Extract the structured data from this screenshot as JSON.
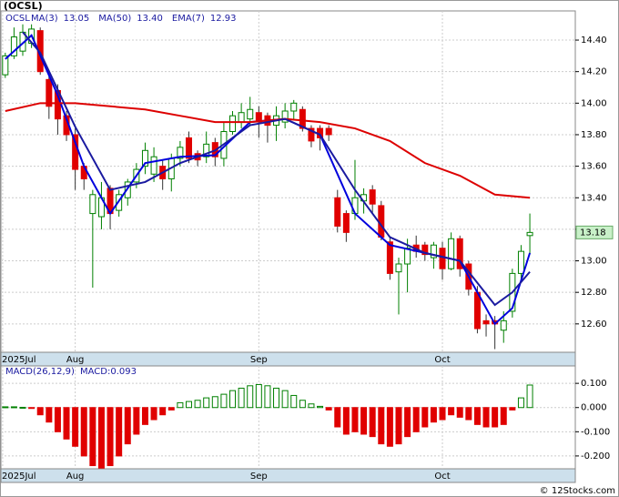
{
  "chart_data": {
    "type": "candlestick",
    "title": "(OCSL)",
    "symbol": "OCSL",
    "up_color": "#008000",
    "down_color": "#e00000",
    "open": [
      14.18,
      14.3,
      14.33,
      14.38,
      14.46,
      14.15,
      14.08,
      13.92,
      13.8,
      13.6,
      13.3,
      13.28,
      13.46,
      13.32,
      13.4,
      13.5,
      13.6,
      13.55,
      13.6,
      13.52,
      13.65,
      13.78,
      13.68,
      13.66,
      13.75,
      13.65,
      13.82,
      13.88,
      13.9,
      13.94,
      13.92,
      13.86,
      13.88,
      13.95,
      13.96,
      13.84,
      13.84,
      13.84,
      13.4,
      13.3,
      13.3,
      13.38,
      13.45,
      13.35,
      13.12,
      12.93,
      12.98,
      13.1,
      13.1,
      13.02,
      13.08,
      12.95,
      13.14,
      12.98,
      12.8,
      12.62,
      12.62,
      12.56,
      12.68,
      12.92,
      13.16
    ],
    "high": [
      14.32,
      14.48,
      14.5,
      14.5,
      14.48,
      14.2,
      14.12,
      13.95,
      13.84,
      13.62,
      13.45,
      13.5,
      13.48,
      13.45,
      13.52,
      13.62,
      13.75,
      13.72,
      13.64,
      13.68,
      13.76,
      13.82,
      13.7,
      13.82,
      13.78,
      13.88,
      13.95,
      14.0,
      14.04,
      13.98,
      13.94,
      13.98,
      14.0,
      14.02,
      13.98,
      13.86,
      13.86,
      13.86,
      13.45,
      13.32,
      13.64,
      13.46,
      13.48,
      13.38,
      13.15,
      13.02,
      13.14,
      13.16,
      13.12,
      13.12,
      13.12,
      13.18,
      13.16,
      13.0,
      12.84,
      12.66,
      12.65,
      12.68,
      12.95,
      13.1,
      13.3
    ],
    "low": [
      14.16,
      14.28,
      14.3,
      14.35,
      14.18,
      13.9,
      13.8,
      13.76,
      13.45,
      13.45,
      12.83,
      13.2,
      13.2,
      13.28,
      13.35,
      13.46,
      13.55,
      13.5,
      13.45,
      13.44,
      13.6,
      13.62,
      13.6,
      13.62,
      13.6,
      13.6,
      13.8,
      13.84,
      13.86,
      13.78,
      13.75,
      13.76,
      13.84,
      13.9,
      13.82,
      13.72,
      13.7,
      13.76,
      13.18,
      13.12,
      13.26,
      13.3,
      13.3,
      13.13,
      12.88,
      12.66,
      12.8,
      13.02,
      13.0,
      12.95,
      12.88,
      12.94,
      12.9,
      12.78,
      12.54,
      12.52,
      12.44,
      12.48,
      12.64,
      12.88,
      13.04
    ],
    "close": [
      14.3,
      14.42,
      14.45,
      14.47,
      14.2,
      13.98,
      13.9,
      13.8,
      13.58,
      13.52,
      13.42,
      13.4,
      13.3,
      13.42,
      13.5,
      13.58,
      13.7,
      13.66,
      13.52,
      13.65,
      13.72,
      13.65,
      13.64,
      13.74,
      13.66,
      13.82,
      13.92,
      13.94,
      13.96,
      13.88,
      13.86,
      13.92,
      13.95,
      14.0,
      13.84,
      13.76,
      13.78,
      13.8,
      13.22,
      13.18,
      13.4,
      13.42,
      13.36,
      13.15,
      12.92,
      12.98,
      13.08,
      13.06,
      13.04,
      13.1,
      12.95,
      13.14,
      12.95,
      12.82,
      12.57,
      12.6,
      12.6,
      12.62,
      12.92,
      13.06,
      13.18
    ],
    "series": [
      {
        "name": "MA(3)",
        "color": "#0000dd",
        "last": {
          "value": 13.05,
          "label": "13.05"
        },
        "x": [
          0,
          3,
          6,
          9,
          12,
          16,
          20,
          24,
          28,
          32,
          36,
          40,
          44,
          48,
          52,
          56,
          58,
          60
        ],
        "values": [
          14.28,
          14.43,
          14.05,
          13.6,
          13.3,
          13.62,
          13.66,
          13.67,
          13.88,
          13.9,
          13.8,
          13.3,
          13.1,
          13.05,
          13.0,
          12.6,
          12.7,
          13.05
        ]
      },
      {
        "name": "MA(50)",
        "color": "#dd0000",
        "last": {
          "value": 13.4,
          "label": "13.40"
        },
        "x": [
          0,
          4,
          8,
          12,
          16,
          20,
          24,
          28,
          32,
          36,
          40,
          44,
          48,
          52,
          56,
          60
        ],
        "values": [
          13.95,
          14.0,
          14.0,
          13.98,
          13.96,
          13.92,
          13.88,
          13.88,
          13.9,
          13.88,
          13.84,
          13.76,
          13.62,
          13.54,
          13.42,
          13.4
        ]
      },
      {
        "name": "EMA(7)",
        "color": "#1a1aa0",
        "last": {
          "value": 12.93,
          "label": "12.93"
        },
        "x": [
          2,
          4,
          8,
          12,
          16,
          20,
          24,
          28,
          32,
          36,
          40,
          44,
          48,
          52,
          56,
          58,
          60
        ],
        "values": [
          14.45,
          14.32,
          13.85,
          13.45,
          13.5,
          13.62,
          13.7,
          13.86,
          13.9,
          13.8,
          13.45,
          13.15,
          13.05,
          13.0,
          12.72,
          12.8,
          12.93
        ]
      }
    ],
    "xlim": [
      -0.5,
      65.2
    ],
    "xticks": [
      {
        "value": -0.3,
        "label": "2025Jul"
      },
      {
        "value": 8,
        "label": "Aug"
      },
      {
        "value": 29,
        "label": "Sep"
      },
      {
        "value": 50,
        "label": "Oct"
      }
    ],
    "ylim": [
      12.42,
      14.585
    ],
    "yticks": [
      {
        "value": 12.6,
        "label": "12.60"
      },
      {
        "value": 12.8,
        "label": "12.80"
      },
      {
        "value": 13,
        "label": "13.00"
      },
      {
        "value": 13.2,
        "label": "13.20"
      },
      {
        "value": 13.4,
        "label": "13.40"
      },
      {
        "value": 13.6,
        "label": "13.60"
      },
      {
        "value": 13.8,
        "label": "13.80"
      },
      {
        "value": 14,
        "label": "14.00"
      },
      {
        "value": 14.2,
        "label": "14.20"
      },
      {
        "value": 14.4,
        "label": "14.40"
      }
    ],
    "grid": true,
    "macd": {
      "title": "MACD(26,12,9)",
      "label": "MACD:0.093",
      "values": [
        0.003,
        0.003,
        0.001,
        -0.003,
        -0.03,
        -0.06,
        -0.1,
        -0.13,
        -0.16,
        -0.2,
        -0.24,
        -0.25,
        -0.24,
        -0.2,
        -0.15,
        -0.11,
        -0.07,
        -0.05,
        -0.03,
        -0.01,
        0.02,
        0.025,
        0.03,
        0.04,
        0.045,
        0.055,
        0.07,
        0.08,
        0.09,
        0.095,
        0.09,
        0.08,
        0.07,
        0.05,
        0.03,
        0.015,
        0.005,
        -0.01,
        -0.08,
        -0.11,
        -0.1,
        -0.11,
        -0.12,
        -0.15,
        -0.16,
        -0.15,
        -0.12,
        -0.1,
        -0.08,
        -0.06,
        -0.05,
        -0.03,
        -0.04,
        -0.05,
        -0.07,
        -0.08,
        -0.08,
        -0.07,
        -0.01,
        0.04,
        0.093
      ],
      "ylim": [
        -0.253,
        0.172
      ],
      "yticks": [
        {
          "value": 0.1,
          "label": "0.100"
        },
        {
          "value": 0,
          "label": "0.000"
        },
        {
          "value": -0.1,
          "label": "-0.100"
        },
        {
          "value": -0.2,
          "label": "-0.200"
        }
      ]
    },
    "footer": "© 12Stocks.com"
  }
}
